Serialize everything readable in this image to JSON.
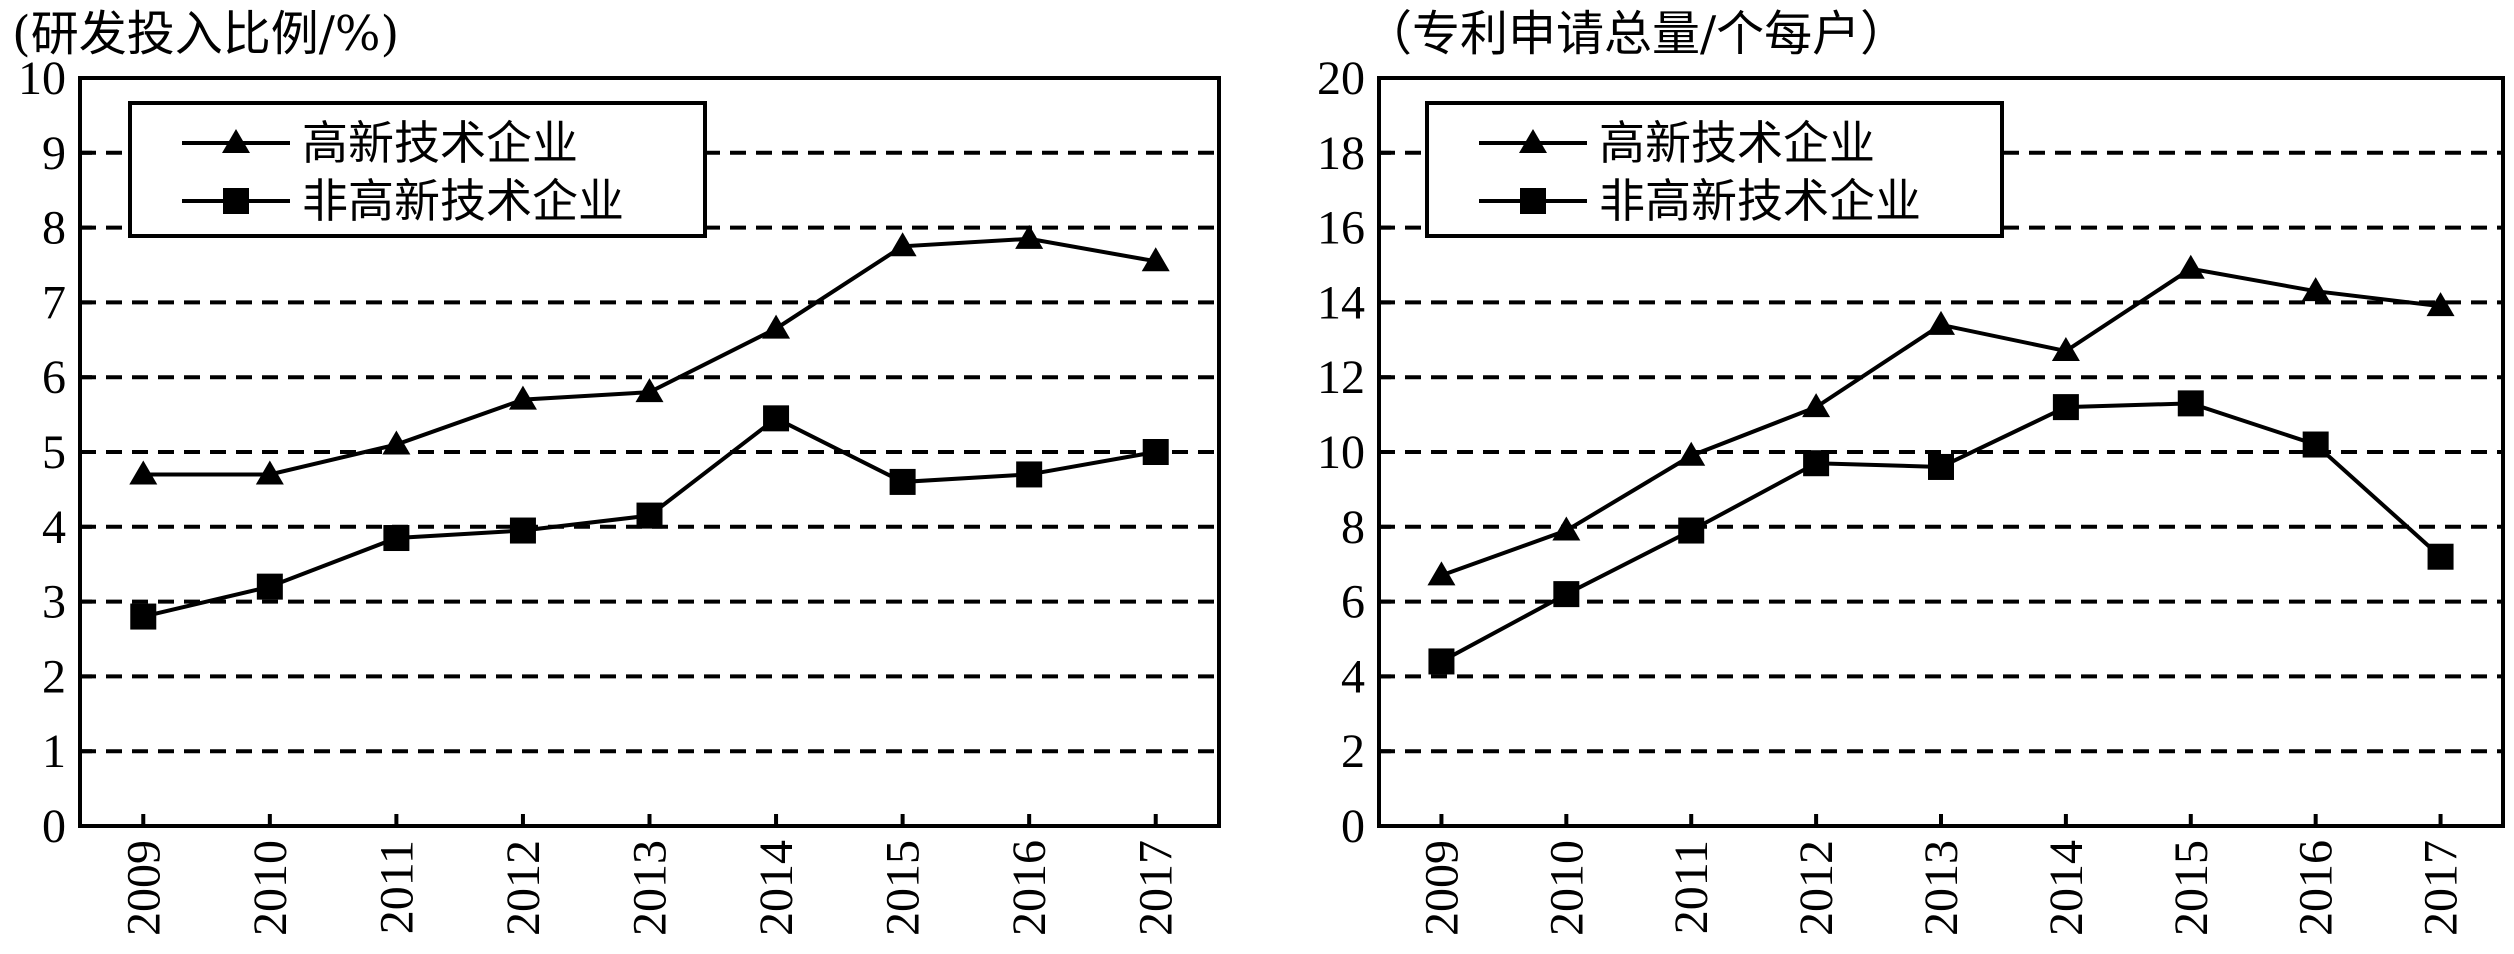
{
  "chart_data": [
    {
      "type": "line",
      "title": "(研发投入比例/%)",
      "xlabel": "",
      "ylabel": "",
      "categories": [
        "2009",
        "2010",
        "2011",
        "2012",
        "2013",
        "2014",
        "2015",
        "2016",
        "2017"
      ],
      "ylim": [
        0,
        10
      ],
      "yticks": [
        "0",
        "1",
        "2",
        "3",
        "4",
        "5",
        "6",
        "7",
        "8",
        "9",
        "10"
      ],
      "grid": "horizontal dashed",
      "legend_position": "top-left",
      "series": [
        {
          "name": "高新技术企业",
          "marker": "triangle",
          "values": [
            4.7,
            4.7,
            5.1,
            5.7,
            5.8,
            6.65,
            7.75,
            7.85,
            7.55
          ]
        },
        {
          "name": "非高新技术企业",
          "marker": "square",
          "values": [
            2.8,
            3.2,
            3.85,
            3.95,
            4.15,
            5.45,
            4.6,
            4.7,
            5.0
          ]
        }
      ]
    },
    {
      "type": "line",
      "title": "（专利申请总量/个每户）",
      "xlabel": "",
      "ylabel": "",
      "categories": [
        "2009",
        "2010",
        "2011",
        "2012",
        "2013",
        "2014",
        "2015",
        "2016",
        "2017"
      ],
      "ylim": [
        0,
        20
      ],
      "yticks": [
        "0",
        "2",
        "4",
        "6",
        "8",
        "10",
        "12",
        "14",
        "16",
        "18",
        "20"
      ],
      "grid": "horizontal dashed",
      "legend_position": "top-left",
      "series": [
        {
          "name": "高新技术企业",
          "marker": "triangle",
          "values": [
            6.7,
            7.9,
            9.9,
            11.2,
            13.4,
            12.7,
            14.9,
            14.3,
            13.9
          ]
        },
        {
          "name": "非高新技术企业",
          "marker": "square",
          "values": [
            4.4,
            6.2,
            7.9,
            9.7,
            9.6,
            11.2,
            11.3,
            10.2,
            7.2
          ]
        }
      ]
    }
  ]
}
